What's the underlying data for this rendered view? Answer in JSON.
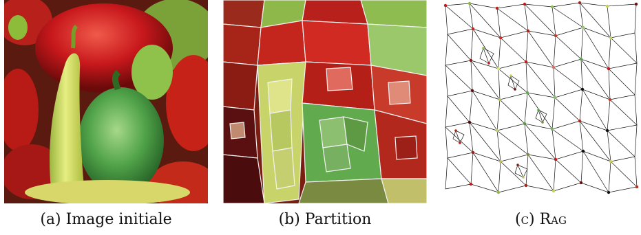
{
  "figure": {
    "panels": [
      {
        "caption": "(a) Image initiale"
      },
      {
        "caption": "(b) Partition"
      },
      {
        "caption": "(c) Rag"
      }
    ]
  },
  "colors": {
    "red_pepper": "#c8181c",
    "green_pepper": "#5aa648",
    "yellow_chili": "#c8d24e",
    "dark_red": "#6a1010",
    "edge": "#111111",
    "background": "#ffffff"
  },
  "icons": [
    "pepper-photo",
    "segmentation-map",
    "region-adjacency-graph"
  ]
}
